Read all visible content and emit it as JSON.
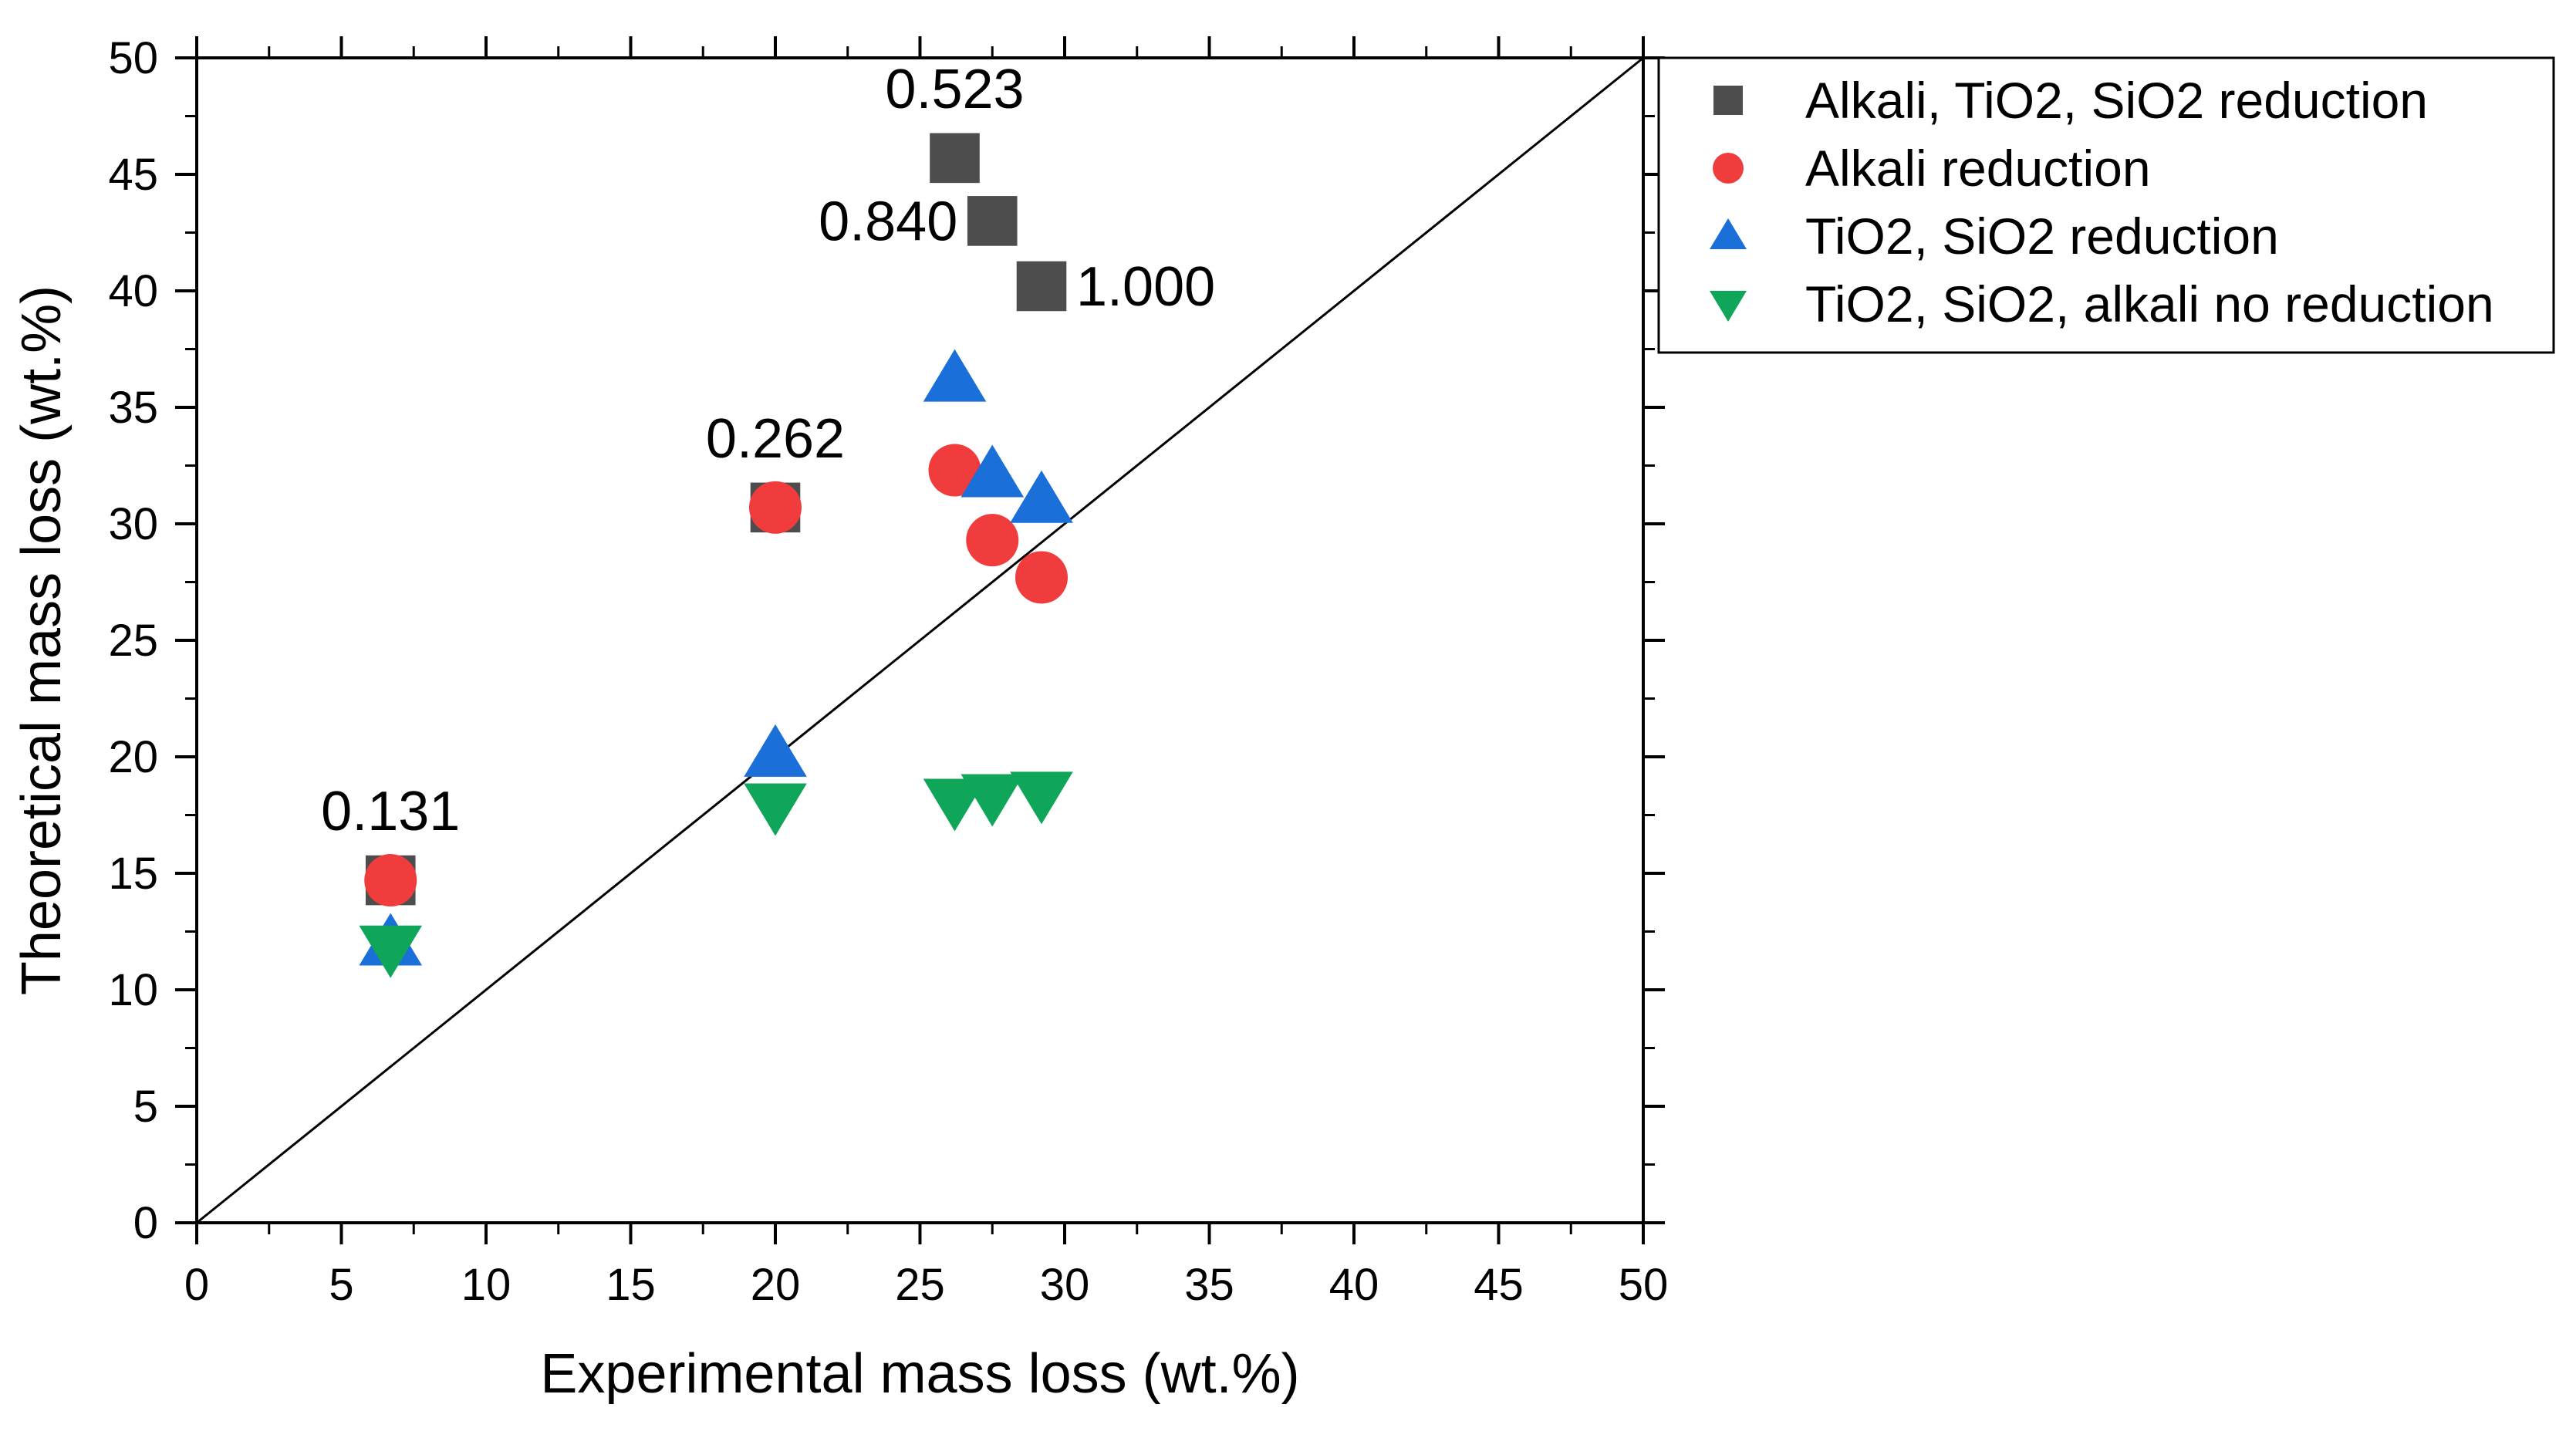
{
  "chart_data": {
    "type": "scatter",
    "title": "",
    "xlabel": "Experimental mass loss (wt.%)",
    "ylabel": "Theoretical mass loss (wt.%)",
    "xlim": [
      0,
      50
    ],
    "ylim": [
      0,
      50
    ],
    "x_ticks": [
      "0",
      "5",
      "10",
      "15",
      "20",
      "25",
      "30",
      "35",
      "40",
      "45",
      "50"
    ],
    "y_ticks": [
      "0",
      "5",
      "10",
      "15",
      "20",
      "25",
      "30",
      "35",
      "40",
      "45",
      "50"
    ],
    "grid": false,
    "reference_line": {
      "label": "y = x",
      "from": [
        0,
        0
      ],
      "to": [
        50,
        50
      ]
    },
    "legend_position": "top-right (outside plot)",
    "series": [
      {
        "name": "Alkali, TiO2, SiO2 reduction",
        "marker": "square",
        "color": "#4d4d4d",
        "points": [
          [
            6.7,
            14.7
          ],
          [
            20.0,
            30.7
          ],
          [
            26.2,
            45.7
          ],
          [
            27.5,
            43.0
          ],
          [
            29.2,
            40.2
          ]
        ]
      },
      {
        "name": "Alkali reduction",
        "marker": "circle",
        "color": "#f03c3c",
        "points": [
          [
            6.7,
            14.7
          ],
          [
            20.0,
            30.7
          ],
          [
            26.2,
            32.3
          ],
          [
            27.5,
            29.3
          ],
          [
            29.2,
            27.7
          ]
        ]
      },
      {
        "name": "TiO2, SiO2 reduction",
        "marker": "triangle-up",
        "color": "#1a6fd8",
        "points": [
          [
            6.7,
            12.0
          ],
          [
            20.0,
            20.1
          ],
          [
            26.2,
            36.2
          ],
          [
            27.5,
            32.1
          ],
          [
            29.2,
            31.0
          ]
        ]
      },
      {
        "name": "TiO2, SiO2, alkali no reduction",
        "marker": "triangle-down",
        "color": "#10a65a",
        "points": [
          [
            6.7,
            11.8
          ],
          [
            20.0,
            17.9
          ],
          [
            26.2,
            18.1
          ],
          [
            27.5,
            18.3
          ],
          [
            29.2,
            18.4
          ]
        ]
      }
    ],
    "annotations": [
      {
        "text": "0.131",
        "x": 6.7,
        "y": 14.7,
        "anchor": "above"
      },
      {
        "text": "0.262",
        "x": 20.0,
        "y": 30.7,
        "anchor": "above"
      },
      {
        "text": "0.523",
        "x": 26.2,
        "y": 45.7,
        "anchor": "above"
      },
      {
        "text": "0.840",
        "x": 27.5,
        "y": 43.0,
        "anchor": "left"
      },
      {
        "text": "1.000",
        "x": 29.2,
        "y": 40.2,
        "anchor": "right"
      }
    ]
  }
}
